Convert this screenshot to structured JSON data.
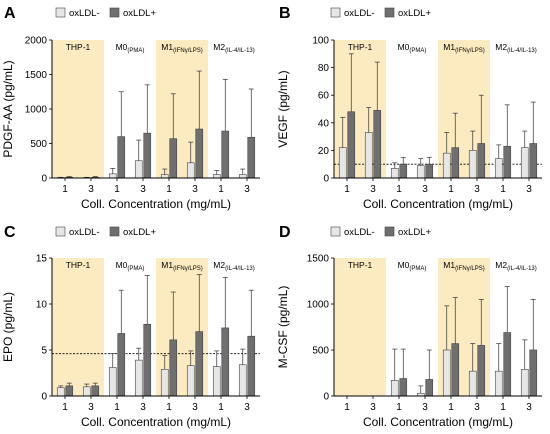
{
  "legend": {
    "neg": "oxLDL-",
    "pos": "oxLDL+"
  },
  "colors": {
    "neg": "#e6e6e6",
    "pos": "#6f6f6f",
    "highlight": "#fcebc0",
    "edge": "#444444"
  },
  "chart_data": [
    {
      "panel_label": "A",
      "type": "bar",
      "ylabel": "PDGF-AA (pg/mL)",
      "xlabel": "Coll. Concentration (mg/mL)",
      "ylim": [
        0,
        2000
      ],
      "yticks": [
        0,
        500,
        1000,
        1500,
        2000
      ],
      "groups": [
        {
          "name": "THP-1",
          "sub": "",
          "highlight": true
        },
        {
          "name": "M0",
          "sub": "(PMA)",
          "highlight": false
        },
        {
          "name": "M1",
          "sub": "(IFNγ/LPS)",
          "highlight": true
        },
        {
          "name": "M2",
          "sub": "(IL-4/IL-13)",
          "highlight": false
        }
      ],
      "categories": [
        "1",
        "3",
        "1",
        "3",
        "1",
        "3",
        "1",
        "3"
      ],
      "series": [
        {
          "name": "oxLDL-",
          "values": [
            5,
            5,
            60,
            250,
            50,
            220,
            50,
            50
          ],
          "errors": [
            5,
            5,
            80,
            300,
            80,
            300,
            60,
            80
          ]
        },
        {
          "name": "oxLDL+",
          "values": [
            10,
            10,
            600,
            650,
            570,
            710,
            680,
            590
          ],
          "errors": [
            10,
            10,
            650,
            700,
            650,
            840,
            750,
            700
          ]
        }
      ],
      "reference_line": null
    },
    {
      "panel_label": "B",
      "type": "bar",
      "ylabel": "VEGF (pg/mL)",
      "xlabel": "Coll. Concentration (mg/mL)",
      "ylim": [
        0,
        100
      ],
      "yticks": [
        0,
        20,
        40,
        60,
        80,
        100
      ],
      "groups": [
        {
          "name": "THP-1",
          "sub": "",
          "highlight": true
        },
        {
          "name": "M0",
          "sub": "(PMA)",
          "highlight": false
        },
        {
          "name": "M1",
          "sub": "(IFNγ/LPS)",
          "highlight": true
        },
        {
          "name": "M2",
          "sub": "(IL-4/IL-13)",
          "highlight": false
        }
      ],
      "categories": [
        "1",
        "3",
        "1",
        "3",
        "1",
        "3",
        "1",
        "3"
      ],
      "series": [
        {
          "name": "oxLDL-",
          "values": [
            22,
            33,
            7,
            9,
            18,
            20,
            14,
            22
          ],
          "errors": [
            22,
            18,
            4,
            5,
            15,
            14,
            10,
            12
          ]
        },
        {
          "name": "oxLDL+",
          "values": [
            48,
            49,
            10,
            10,
            22,
            25,
            23,
            25
          ],
          "errors": [
            42,
            35,
            5,
            5,
            25,
            35,
            30,
            30
          ]
        }
      ],
      "reference_line": 10
    },
    {
      "panel_label": "C",
      "type": "bar",
      "ylabel": "EPO (pg/mL)",
      "xlabel": "Coll. Concentration (mg/mL)",
      "ylim": [
        0,
        15
      ],
      "yticks": [
        0,
        5,
        10,
        15
      ],
      "groups": [
        {
          "name": "THP-1",
          "sub": "",
          "highlight": true
        },
        {
          "name": "M0",
          "sub": "(PMA)",
          "highlight": false
        },
        {
          "name": "M1",
          "sub": "(IFNγ/LPS)",
          "highlight": true
        },
        {
          "name": "M2",
          "sub": "(IL-4/IL-13)",
          "highlight": false
        }
      ],
      "categories": [
        "1",
        "3",
        "1",
        "3",
        "1",
        "3",
        "1",
        "3"
      ],
      "series": [
        {
          "name": "oxLDL-",
          "values": [
            0.9,
            1.0,
            3.1,
            3.9,
            2.9,
            3.3,
            3.2,
            3.4
          ],
          "errors": [
            0.2,
            0.3,
            1.5,
            1.3,
            1.5,
            1.6,
            1.7,
            1.7
          ]
        },
        {
          "name": "oxLDL+",
          "values": [
            1.1,
            1.1,
            6.8,
            7.8,
            6.1,
            7.0,
            7.4,
            6.5
          ],
          "errors": [
            0.3,
            0.3,
            4.7,
            5.3,
            5.2,
            6.2,
            5.5,
            5.0
          ]
        }
      ],
      "reference_line": 4.6
    },
    {
      "panel_label": "D",
      "type": "bar",
      "ylabel": "M-CSF (pg/mL)",
      "xlabel": "Coll. Concentration (mg/mL)",
      "ylim": [
        0,
        1500
      ],
      "yticks": [
        0,
        500,
        1000,
        1500
      ],
      "groups": [
        {
          "name": "THP-1",
          "sub": "",
          "highlight": true
        },
        {
          "name": "M0",
          "sub": "(PMA)",
          "highlight": false
        },
        {
          "name": "M1",
          "sub": "(IFNγ/LPS)",
          "highlight": true
        },
        {
          "name": "M2",
          "sub": "(IL-4/IL-13)",
          "highlight": false
        }
      ],
      "categories": [
        "1",
        "3",
        "1",
        "3",
        "1",
        "3",
        "1",
        "3"
      ],
      "series": [
        {
          "name": "oxLDL-",
          "values": [
            0,
            0,
            170,
            30,
            500,
            270,
            270,
            290
          ],
          "errors": [
            0,
            0,
            340,
            80,
            480,
            300,
            300,
            320
          ]
        },
        {
          "name": "oxLDL+",
          "values": [
            0,
            0,
            190,
            180,
            570,
            550,
            690,
            500
          ],
          "errors": [
            0,
            0,
            320,
            320,
            500,
            500,
            500,
            550
          ]
        }
      ],
      "reference_line": null
    }
  ]
}
